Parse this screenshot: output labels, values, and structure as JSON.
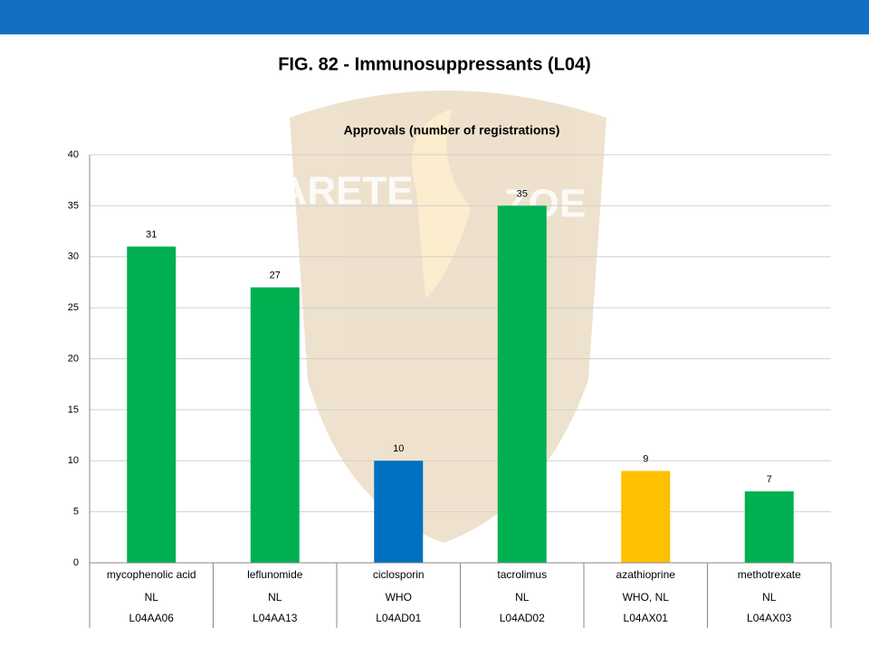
{
  "header": {
    "title": "FIG. 82 - Immunosuppressants (L04)"
  },
  "watermark": [
    "ARETE",
    "ZOE"
  ],
  "chart_data": {
    "type": "bar",
    "title": "Approvals (number of registrations)",
    "categories": [
      "mycophenolic acid",
      "leflunomide",
      "ciclosporin",
      "tacrolimus",
      "azathioprine",
      "methotrexate"
    ],
    "sources": [
      "NL",
      "NL",
      "WHO",
      "NL",
      "WHO, NL",
      "NL"
    ],
    "codes": [
      "L04AA06",
      "L04AA13",
      "L04AD01",
      "L04AD02",
      "L04AX01",
      "L04AX03"
    ],
    "values": [
      31,
      27,
      10,
      35,
      9,
      7
    ],
    "colors": [
      "#00b050",
      "#00b050",
      "#0070c0",
      "#00b050",
      "#ffc000",
      "#00b050"
    ],
    "ylim": [
      0,
      40
    ],
    "yticks": [
      0,
      5,
      10,
      15,
      20,
      25,
      30,
      35,
      40
    ],
    "grid": true
  }
}
